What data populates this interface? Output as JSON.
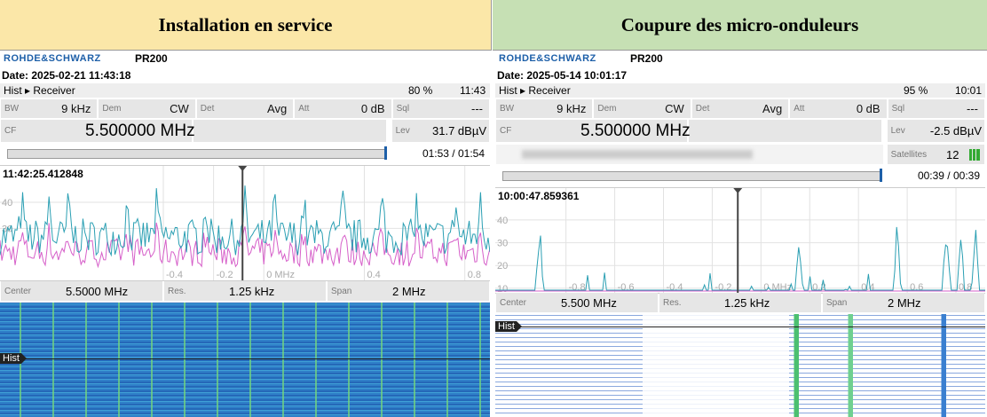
{
  "headers": [
    "Installation en service",
    "Coupure des micro-onduleurs"
  ],
  "panels": [
    {
      "brand": "ROHDE&SCHWARZ",
      "model": "PR200",
      "date": "Date: 2025-02-21 11:43:18",
      "mode": "Hist ▸ Receiver",
      "volume": "80 %",
      "clock": "11:43",
      "settings": [
        [
          "BW",
          "9 kHz"
        ],
        [
          "Dem",
          "CW"
        ],
        [
          "Det",
          "Avg"
        ],
        [
          "Att",
          "0 dB"
        ],
        [
          "Sql",
          "---"
        ]
      ],
      "cf_label": "CF",
      "cf": "5.500000 MHz",
      "lev_label": "Lev",
      "lev": "31.7 dBµV",
      "progress": "01:53 / 01:54",
      "timestamp": "11:42:25.412848",
      "spectrum": {
        "ylim": [
          10,
          54
        ],
        "yticks": [
          30,
          40
        ],
        "xlim": [
          -1.05,
          0.9
        ],
        "xticks": [
          -0.4,
          -0.2,
          {
            "value": 0,
            "label": "0 MHz"
          },
          0.4,
          0.8
        ]
      },
      "footer": [
        [
          "Center",
          "5.5000 MHz"
        ],
        [
          "Res.",
          "1.25 kHz"
        ],
        [
          "Span",
          "2 MHz"
        ]
      ],
      "waterfall_label": "Hist"
    },
    {
      "brand": "ROHDE&SCHWARZ",
      "model": "PR200",
      "date": "Date: 2025-05-14 10:01:17",
      "mode": "Hist ▸ Receiver",
      "volume": "95 %",
      "clock": "10:01",
      "settings": [
        [
          "BW",
          "9 kHz"
        ],
        [
          "Dem",
          "CW"
        ],
        [
          "Det",
          "Avg"
        ],
        [
          "Att",
          "0 dB"
        ],
        [
          "Sql",
          "---"
        ]
      ],
      "cf_label": "CF",
      "cf": "5.500000 MHz",
      "lev_label": "Lev",
      "lev": "-2.5 dBµV",
      "satellites": [
        "Satellites",
        "12"
      ],
      "progress": "00:39 / 00:39",
      "timestamp": "10:00:47.859361",
      "spectrum": {
        "ylim": [
          8,
          54
        ],
        "yticks": [
          10,
          20,
          30,
          40
        ],
        "xlim": [
          -1.09,
          0.92
        ],
        "xticks": [
          -0.8,
          -0.6,
          -0.4,
          -0.2,
          {
            "value": 0,
            "label": "0 MHz"
          },
          0.2,
          0.4,
          0.6,
          0.8
        ]
      },
      "footer": [
        [
          "Center",
          "5.500 MHz"
        ],
        [
          "Res.",
          "1.25 kHz"
        ],
        [
          "Span",
          "2 MHz"
        ]
      ],
      "waterfall_label": "Hist"
    }
  ]
}
